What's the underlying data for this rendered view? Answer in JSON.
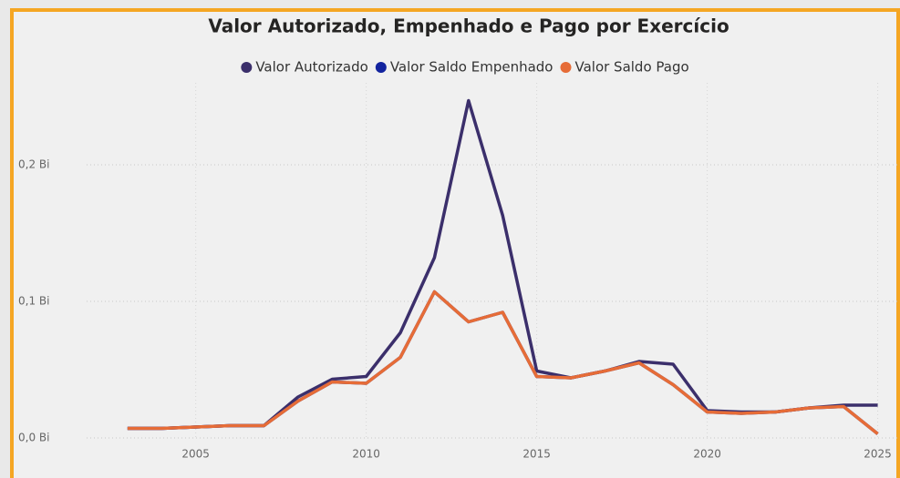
{
  "chart_data": {
    "type": "line",
    "title": "Valor Autorizado, Empenhado e Pago por Exercício",
    "x": [
      2003,
      2004,
      2005,
      2006,
      2007,
      2008,
      2009,
      2010,
      2011,
      2012,
      2013,
      2014,
      2015,
      2016,
      2017,
      2018,
      2019,
      2020,
      2021,
      2022,
      2023,
      2024,
      2025
    ],
    "series": [
      {
        "name": "Valor Autorizado",
        "color": "#3b2f6b",
        "values": [
          0.007,
          0.007,
          0.008,
          0.009,
          0.009,
          0.03,
          0.043,
          0.045,
          0.077,
          0.132,
          0.247,
          0.163,
          0.049,
          0.044,
          0.049,
          0.056,
          0.054,
          0.02,
          0.019,
          0.019,
          0.022,
          0.024,
          0.024
        ]
      },
      {
        "name": "Valor Saldo Empenhado",
        "color": "#12239e",
        "values": [
          0.007,
          0.007,
          0.008,
          0.009,
          0.009,
          0.027,
          0.041,
          0.04,
          0.059,
          0.107,
          0.085,
          0.092,
          0.045,
          0.044,
          0.049,
          0.055,
          0.039,
          0.019,
          0.018,
          0.019,
          0.022,
          0.023,
          0.003
        ]
      },
      {
        "name": "Valor Saldo Pago",
        "color": "#e66c37",
        "values": [
          0.007,
          0.007,
          0.008,
          0.009,
          0.009,
          0.027,
          0.041,
          0.04,
          0.059,
          0.107,
          0.085,
          0.092,
          0.045,
          0.044,
          0.049,
          0.055,
          0.039,
          0.019,
          0.018,
          0.019,
          0.022,
          0.023,
          0.003
        ]
      }
    ],
    "xlim": [
      2001.8,
      2025.6
    ],
    "xticks": [
      2005,
      2010,
      2015,
      2020,
      2025
    ],
    "ylim": [
      0,
      0.26
    ],
    "yticks": [
      {
        "value": 0,
        "label": "0,0 Bi"
      },
      {
        "value": 0.1,
        "label": "0,1 Bi"
      },
      {
        "value": 0.2,
        "label": "0,2 Bi"
      }
    ],
    "grid": true,
    "legend": "top"
  }
}
